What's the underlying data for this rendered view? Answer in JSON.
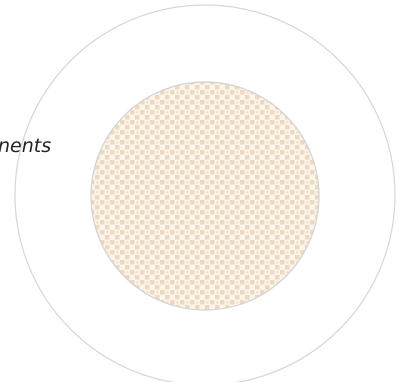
{
  "diagram": {
    "label_fragment": "nents",
    "outer_ring": {
      "stroke": "#d6d6d6",
      "fill": "#ffffff"
    },
    "inner_disc": {
      "stroke": "#d2d2d2",
      "base_fill": "#fbf5ec",
      "pattern_color": "#ecd9bf"
    }
  }
}
